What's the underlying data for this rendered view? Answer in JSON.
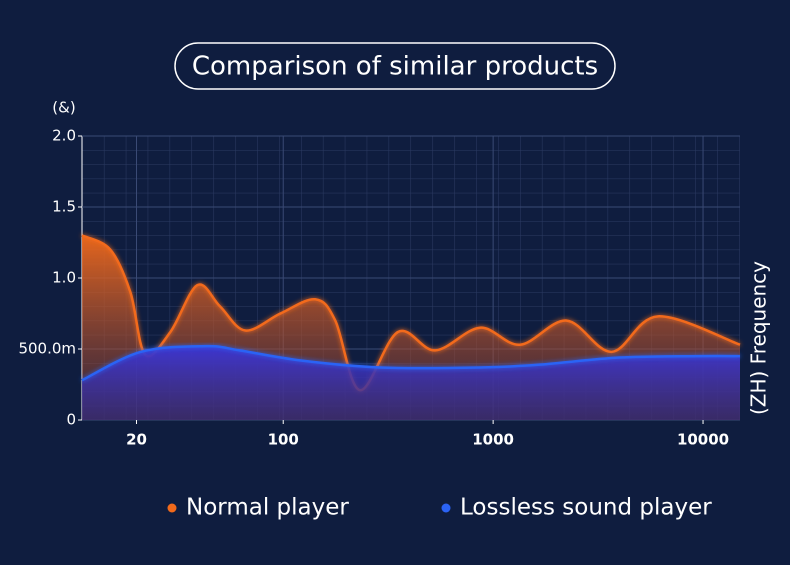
{
  "chart_data": {
    "type": "area",
    "title": "Comparison of similar products",
    "y_label": "(&)",
    "x_label": "(ZH) Frequency",
    "x_scale": "log",
    "xlim": [
      11,
      15000
    ],
    "xticks": [
      20,
      100,
      1000,
      10000
    ],
    "ylim": [
      0,
      2
    ],
    "yticks": [
      0,
      {
        "value": 0.5,
        "label": "500.0m"
      },
      {
        "value": 1,
        "label": "1.0"
      },
      1.5,
      {
        "value": 2,
        "label": "2.0"
      }
    ],
    "grid": true,
    "series": [
      {
        "name": "Normal player",
        "color": "#f26a1b",
        "x": [
          11,
          15,
          18.7,
          22,
          29,
          39,
          50,
          66,
          97,
          142,
          177,
          232,
          352,
          530,
          866,
          1343,
          2240,
          3670,
          6100,
          15000
        ],
        "values": [
          1.3,
          1.2,
          0.9,
          0.46,
          0.62,
          0.95,
          0.8,
          0.63,
          0.75,
          0.85,
          0.7,
          0.21,
          0.62,
          0.49,
          0.65,
          0.53,
          0.7,
          0.48,
          0.73,
          0.53
        ]
      },
      {
        "name": "Lossless sound player",
        "color": "#2b63f5",
        "x": [
          11,
          21,
          43,
          62,
          120,
          290,
          866,
          1670,
          4000,
          9600,
          15000
        ],
        "values": [
          0.28,
          0.48,
          0.52,
          0.49,
          0.42,
          0.37,
          0.37,
          0.39,
          0.44,
          0.45,
          0.45
        ]
      }
    ]
  }
}
